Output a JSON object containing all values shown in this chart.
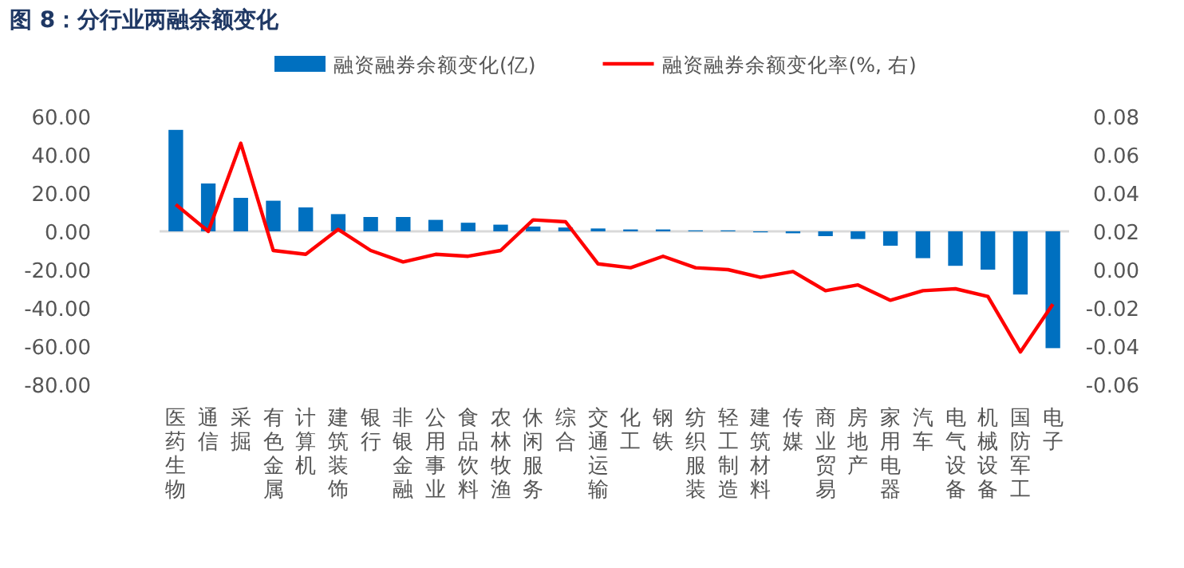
{
  "chart_data": {
    "type": "bar",
    "title": "图 8：分行业两融余额变化",
    "categories": [
      "医药生物",
      "通信",
      "采掘",
      "有色金属",
      "计算机",
      "建筑装饰",
      "银行",
      "非银金融",
      "公用事业",
      "食品饮料",
      "农林牧渔",
      "休闲服务",
      "综合",
      "交通运输",
      "化工",
      "钢铁",
      "纺织服装",
      "轻工制造",
      "建筑材料",
      "传媒",
      "商业贸易",
      "房地产",
      "家用电器",
      "汽车",
      "电气设备",
      "机械设备",
      "国防军工",
      "电子"
    ],
    "series": [
      {
        "name": "融资融券余额变化(亿)",
        "color": "#0070c0",
        "values": [
          53,
          25,
          17.5,
          16,
          12.5,
          9,
          7.5,
          7.5,
          6,
          4.5,
          3.5,
          2.5,
          2,
          1.5,
          1,
          1,
          0.5,
          0.5,
          -0.5,
          -1,
          -2.5,
          -4,
          -7.5,
          -14,
          -18,
          -20,
          -33,
          -61
        ]
      },
      {
        "name": "融资融券余额变化率(%, 右)",
        "type": "line",
        "axis": "y2",
        "color": "#ff0000",
        "values": [
          0.034,
          0.02,
          0.066,
          0.01,
          0.008,
          0.021,
          0.01,
          0.004,
          0.008,
          0.007,
          0.01,
          0.026,
          0.025,
          0.003,
          0.001,
          0.007,
          0.001,
          0.0,
          -0.004,
          -0.001,
          -0.011,
          -0.008,
          -0.016,
          -0.011,
          -0.01,
          -0.014,
          -0.043,
          -0.018
        ]
      }
    ],
    "ylim": [
      -80,
      60
    ],
    "yticks": [
      {
        "value": 60,
        "label": "60.00"
      },
      {
        "value": 40,
        "label": "40.00"
      },
      {
        "value": 20,
        "label": "20.00"
      },
      {
        "value": 0,
        "label": "0.00"
      },
      {
        "value": -20,
        "label": "-20.00"
      },
      {
        "value": -40,
        "label": "-40.00"
      },
      {
        "value": -60,
        "label": "-60.00"
      },
      {
        "value": -80,
        "label": "-80.00"
      }
    ],
    "y2lim": [
      -0.06,
      0.08
    ],
    "y2ticks": [
      {
        "value": 0.08,
        "label": "0.08"
      },
      {
        "value": 0.06,
        "label": "0.06"
      },
      {
        "value": 0.04,
        "label": "0.04"
      },
      {
        "value": 0.02,
        "label": "0.02"
      },
      {
        "value": 0,
        "label": "0.00"
      },
      {
        "value": -0.02,
        "label": "-0.02"
      },
      {
        "value": -0.04,
        "label": "-0.04"
      },
      {
        "value": -0.06,
        "label": "-0.06"
      }
    ],
    "legend": "top"
  }
}
